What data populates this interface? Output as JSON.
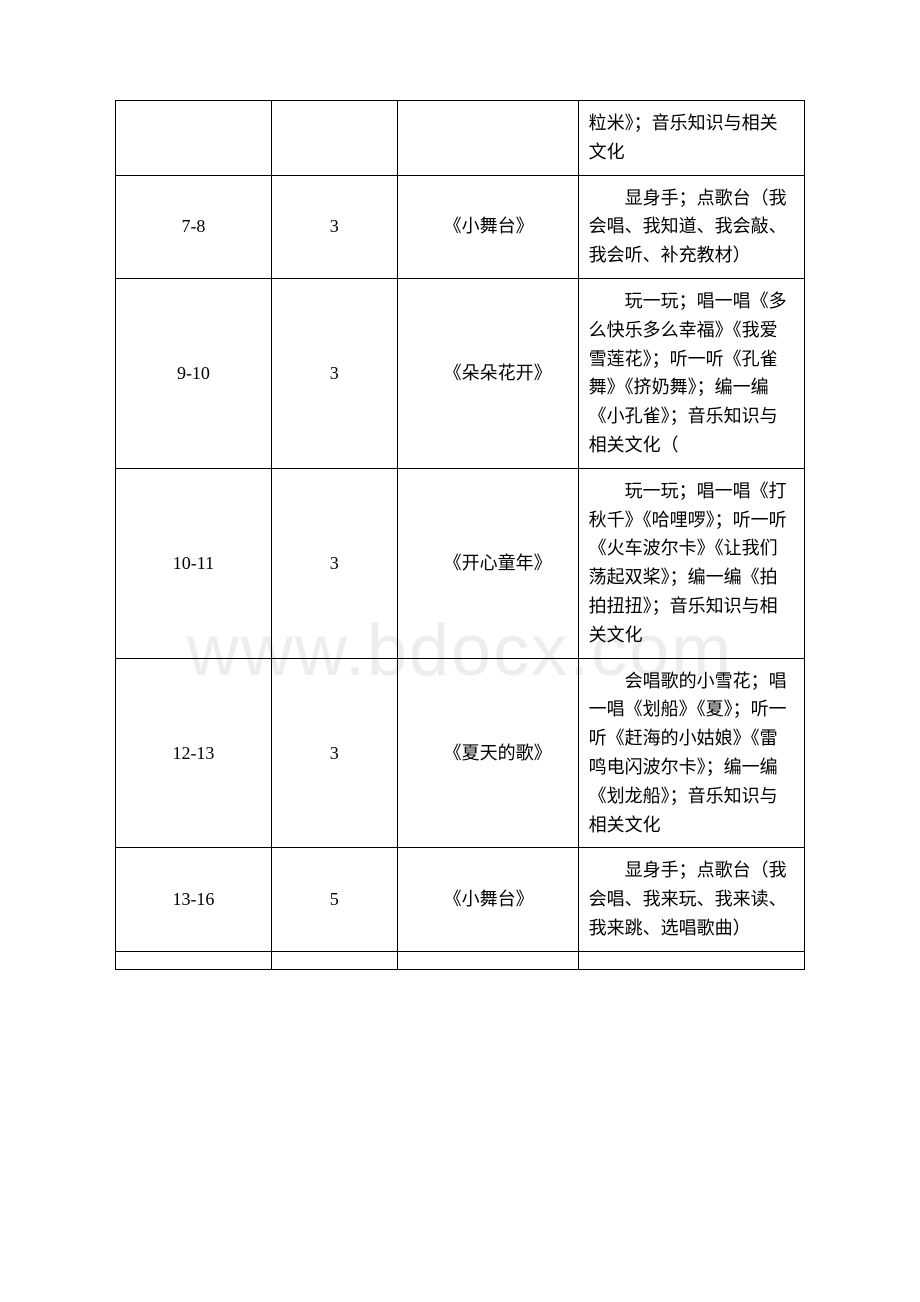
{
  "watermark": "www.bdocx.com",
  "rows": [
    {
      "col1": "",
      "col2": "",
      "col3": "",
      "col4": "粒米》；音乐知识与相关文化"
    },
    {
      "col1": "7-8",
      "col2": "3",
      "col3": "《小舞台》",
      "col4": "显身手；点歌台（我会唱、我知道、我会敲、我会听、补充教材）"
    },
    {
      "col1": "9-10",
      "col2": "3",
      "col3": "《朵朵花开》",
      "col4": "玩一玩；唱一唱《多么快乐多么幸福》《我爱雪莲花》；听一听《孔雀舞》《挤奶舞》；编一编《小孔雀》；音乐知识与相关文化（"
    },
    {
      "col1": "10-11",
      "col2": "3",
      "col3": "《开心童年》",
      "col4": "玩一玩；唱一唱《打秋千》《哈哩啰》；听一听《火车波尔卡》《让我们荡起双桨》；编一编《拍拍扭扭》；音乐知识与相关文化"
    },
    {
      "col1": "12-13",
      "col2": "3",
      "col3": "《夏天的歌》",
      "col4": "会唱歌的小雪花；唱一唱《划船》《夏》；听一听《赶海的小姑娘》《雷鸣电闪波尔卡》；编一编《划龙船》；音乐知识与相关文化"
    },
    {
      "col1": "13-16",
      "col2": "5",
      "col3": "《小舞台》",
      "col4": "显身手；点歌台（我会唱、我来玩、我来读、我来跳、选唱歌曲）"
    },
    {
      "col1": "",
      "col2": "",
      "col3": "",
      "col4": ""
    }
  ]
}
